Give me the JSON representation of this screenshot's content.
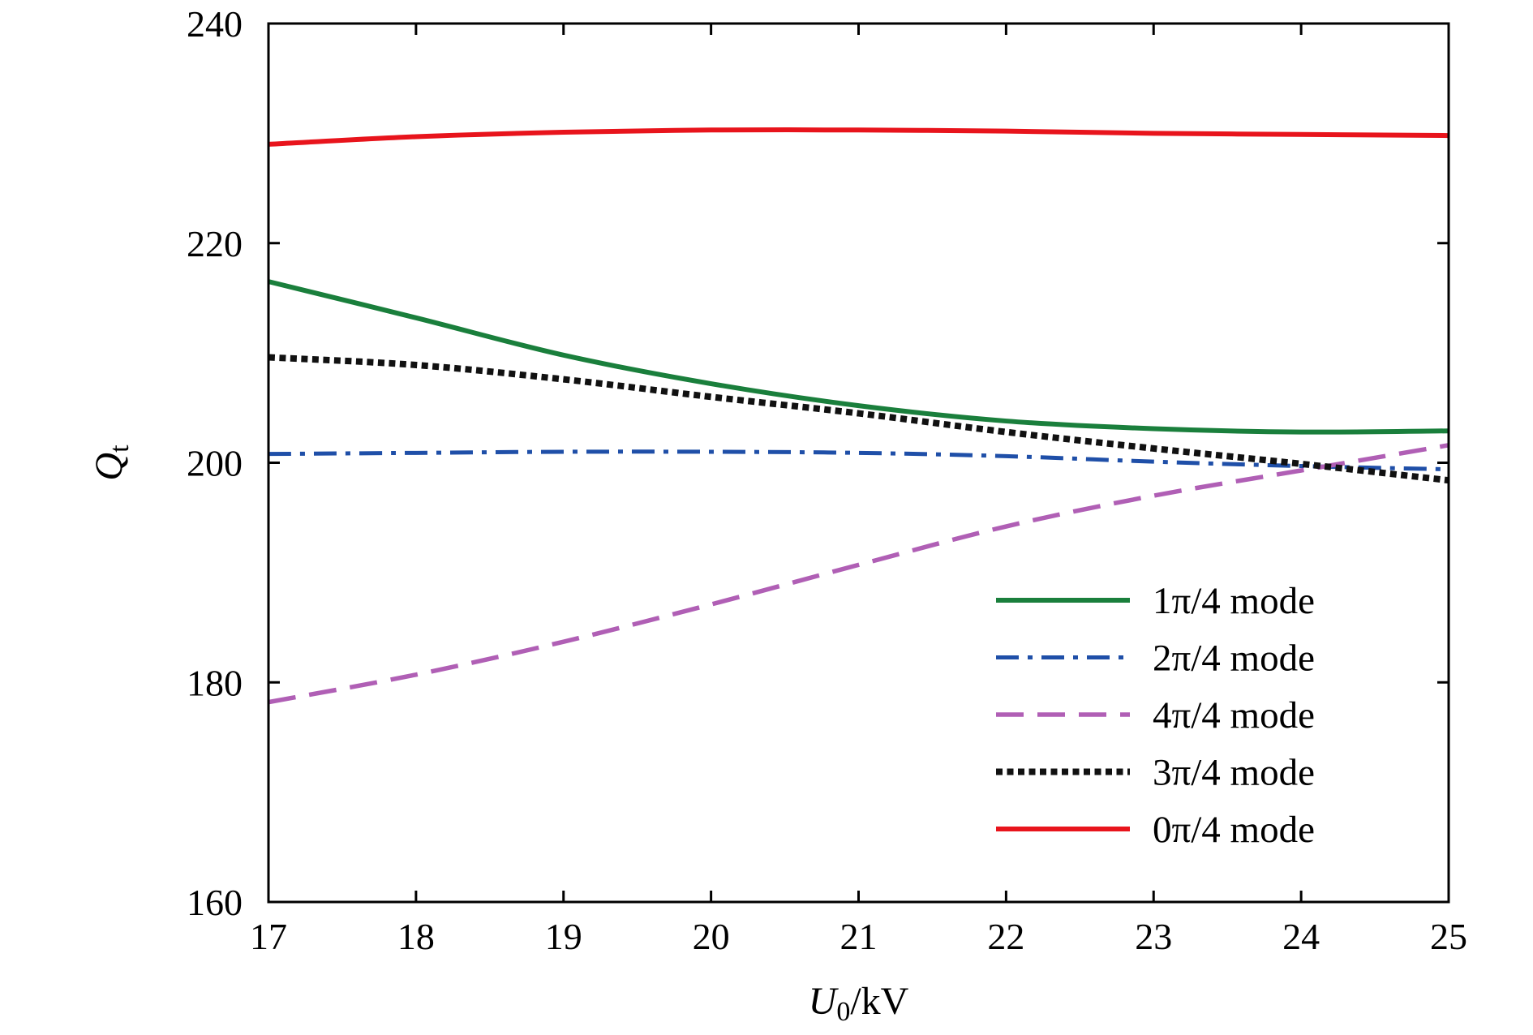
{
  "chart_data": {
    "type": "line",
    "xlabel": {
      "main": "U",
      "sub": "0",
      "unit": "/kV"
    },
    "ylabel": {
      "main": "Q",
      "sub": "t"
    },
    "xlim": [
      17,
      25
    ],
    "ylim": [
      160,
      240
    ],
    "xticks": [
      17,
      18,
      19,
      20,
      21,
      22,
      23,
      24,
      25
    ],
    "yticks": [
      160,
      180,
      200,
      220,
      240
    ],
    "grid": false,
    "legend_position": "bottom-right",
    "x": [
      17,
      18,
      19,
      20,
      21,
      22,
      23,
      24,
      25
    ],
    "series": [
      {
        "name": "1π/4 mode",
        "color": "#1a7f3c",
        "style": "solid",
        "values": [
          216.5,
          213.2,
          209.8,
          207.2,
          205.2,
          203.8,
          203.1,
          202.8,
          202.9
        ]
      },
      {
        "name": "2π/4 mode",
        "color": "#1f4fa8",
        "style": "dashdot",
        "values": [
          200.8,
          200.9,
          201.0,
          201.0,
          200.9,
          200.6,
          200.1,
          199.7,
          199.4
        ]
      },
      {
        "name": "4π/4 mode",
        "color": "#b05fb5",
        "style": "dashed",
        "values": [
          178.2,
          180.7,
          183.7,
          187.1,
          190.7,
          194.2,
          197.0,
          199.3,
          201.6
        ]
      },
      {
        "name": "3π/4 mode",
        "color": "#111111",
        "style": "dotted",
        "values": [
          209.6,
          208.9,
          207.6,
          206.0,
          204.5,
          202.8,
          201.3,
          199.9,
          198.4
        ]
      },
      {
        "name": "0π/4 mode",
        "color": "#e8141c",
        "style": "solid",
        "values": [
          229.0,
          229.7,
          230.1,
          230.3,
          230.3,
          230.2,
          230.0,
          229.9,
          229.8
        ]
      }
    ]
  }
}
